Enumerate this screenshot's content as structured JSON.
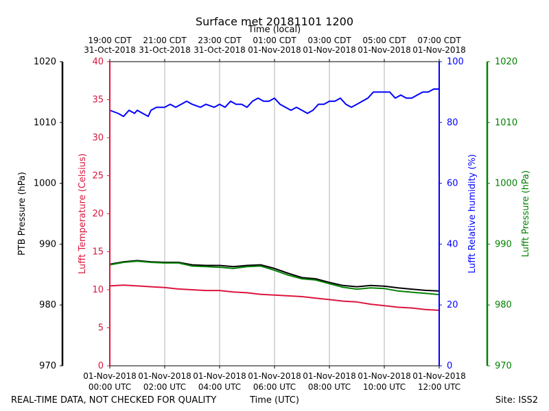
{
  "chart_data": {
    "type": "line",
    "title": "Surface met 20181101 1200",
    "top_axis_label": "Time (local)",
    "xlabel": "Time (UTC)",
    "footer_left": "REAL-TIME DATA, NOT CHECKED FOR QUALITY",
    "footer_right": "Site: ISS2",
    "x_range_hours": [
      0,
      12
    ],
    "x_ticks_bottom": [
      {
        "h": 0,
        "l1": "01-Nov-2018",
        "l2": "00:00 UTC"
      },
      {
        "h": 2,
        "l1": "01-Nov-2018",
        "l2": "02:00 UTC"
      },
      {
        "h": 4,
        "l1": "01-Nov-2018",
        "l2": "04:00 UTC"
      },
      {
        "h": 6,
        "l1": "01-Nov-2018",
        "l2": "06:00 UTC"
      },
      {
        "h": 8,
        "l1": "01-Nov-2018",
        "l2": "08:00 UTC"
      },
      {
        "h": 10,
        "l1": "01-Nov-2018",
        "l2": "10:00 UTC"
      },
      {
        "h": 12,
        "l1": "01-Nov-2018",
        "l2": "12:00 UTC"
      }
    ],
    "x_ticks_top": [
      {
        "h": 0,
        "l1": "19:00 CDT",
        "l2": "31-Oct-2018"
      },
      {
        "h": 2,
        "l1": "21:00 CDT",
        "l2": "31-Oct-2018"
      },
      {
        "h": 4,
        "l1": "23:00 CDT",
        "l2": "31-Oct-2018"
      },
      {
        "h": 6,
        "l1": "01:00 CDT",
        "l2": "01-Nov-2018"
      },
      {
        "h": 8,
        "l1": "03:00 CDT",
        "l2": "01-Nov-2018"
      },
      {
        "h": 10,
        "l1": "05:00 CDT",
        "l2": "01-Nov-2018"
      },
      {
        "h": 12,
        "l1": "07:00 CDT",
        "l2": "01-Nov-2018"
      }
    ],
    "axes": {
      "ptb_pressure": {
        "label": "PTB Pressure (hPa)",
        "range": [
          970,
          1020
        ],
        "ticks": [
          970,
          980,
          990,
          1000,
          1010,
          1020
        ],
        "color": "#000000"
      },
      "temperature": {
        "label": "Lufft Temperature (Celsius)",
        "range": [
          0,
          40
        ],
        "ticks": [
          0,
          5,
          10,
          15,
          20,
          25,
          30,
          35,
          40
        ],
        "color": "#dc143c"
      },
      "humidity": {
        "label": "Lufft Relative humidity (%)",
        "range": [
          0,
          100
        ],
        "ticks": [
          0,
          20,
          40,
          60,
          80,
          100
        ],
        "color": "#0000ff"
      },
      "lufft_pressure": {
        "label": "Lufft Pressure (hPa)",
        "range": [
          970,
          1020
        ],
        "ticks": [
          970,
          980,
          990,
          1000,
          1010,
          1020
        ],
        "color": "#008000"
      }
    },
    "series": [
      {
        "name": "Lufft Relative humidity",
        "axis": "humidity",
        "color": "#0000ff",
        "x": [
          0,
          0.3,
          0.5,
          0.7,
          0.9,
          1.0,
          1.2,
          1.4,
          1.5,
          1.7,
          1.9,
          2.0,
          2.2,
          2.4,
          2.6,
          2.8,
          3.0,
          3.3,
          3.5,
          3.8,
          4.0,
          4.2,
          4.4,
          4.6,
          4.8,
          5.0,
          5.2,
          5.4,
          5.6,
          5.8,
          6.0,
          6.2,
          6.4,
          6.6,
          6.8,
          7.0,
          7.2,
          7.4,
          7.6,
          7.8,
          8.0,
          8.2,
          8.4,
          8.6,
          8.8,
          9.0,
          9.2,
          9.4,
          9.6,
          9.8,
          10.0,
          10.2,
          10.4,
          10.6,
          10.8,
          11.0,
          11.2,
          11.4,
          11.6,
          11.8,
          12.0
        ],
        "values": [
          84,
          83,
          82,
          84,
          83,
          84,
          83,
          82,
          84,
          85,
          85,
          85,
          86,
          85,
          86,
          87,
          86,
          85,
          86,
          85,
          86,
          85,
          87,
          86,
          86,
          85,
          87,
          88,
          87,
          87,
          88,
          86,
          85,
          84,
          85,
          84,
          83,
          84,
          86,
          86,
          87,
          87,
          88,
          86,
          85,
          86,
          87,
          88,
          90,
          90,
          90,
          90,
          88,
          89,
          88,
          88,
          89,
          90,
          90,
          91,
          91
        ]
      },
      {
        "name": "Lufft Temperature",
        "axis": "temperature",
        "color": "#dc143c",
        "x": [
          0,
          0.5,
          1.0,
          1.5,
          2.0,
          2.5,
          3.0,
          3.5,
          4.0,
          4.5,
          5.0,
          5.5,
          6.0,
          6.5,
          7.0,
          7.5,
          8.0,
          8.5,
          9.0,
          9.5,
          10.0,
          10.5,
          11.0,
          11.5,
          12.0
        ],
        "values": [
          10.5,
          10.6,
          10.5,
          10.4,
          10.3,
          10.1,
          10.0,
          9.9,
          9.9,
          9.7,
          9.6,
          9.4,
          9.3,
          9.2,
          9.1,
          8.9,
          8.7,
          8.5,
          8.4,
          8.1,
          7.9,
          7.7,
          7.6,
          7.4,
          7.3
        ]
      },
      {
        "name": "PTB Pressure",
        "axis": "ptb_pressure",
        "color": "#000000",
        "x": [
          0,
          0.5,
          1.0,
          1.5,
          2.0,
          2.5,
          3.0,
          3.5,
          4.0,
          4.5,
          5.0,
          5.5,
          6.0,
          6.5,
          7.0,
          7.5,
          8.0,
          8.5,
          9.0,
          9.5,
          10.0,
          10.5,
          11.0,
          11.5,
          12.0
        ],
        "values": [
          986.7,
          987.1,
          987.3,
          987.1,
          987.0,
          987.0,
          986.6,
          986.5,
          986.5,
          986.3,
          986.5,
          986.6,
          986.0,
          985.2,
          984.5,
          984.3,
          983.7,
          983.2,
          983.0,
          983.2,
          983.1,
          982.8,
          982.6,
          982.4,
          982.3
        ]
      },
      {
        "name": "Lufft Pressure",
        "axis": "lufft_pressure",
        "color": "#008000",
        "x": [
          0,
          0.5,
          1.0,
          1.5,
          2.0,
          2.5,
          3.0,
          3.5,
          4.0,
          4.5,
          5.0,
          5.5,
          6.0,
          6.5,
          7.0,
          7.5,
          8.0,
          8.5,
          9.0,
          9.5,
          10.0,
          10.5,
          11.0,
          11.5,
          12.0
        ],
        "values": [
          986.6,
          987.0,
          987.2,
          987.0,
          986.9,
          986.9,
          986.4,
          986.3,
          986.2,
          986.0,
          986.3,
          986.4,
          985.7,
          984.9,
          984.3,
          984.1,
          983.5,
          982.9,
          982.6,
          982.8,
          982.7,
          982.3,
          982.1,
          981.9,
          981.7
        ]
      }
    ]
  }
}
